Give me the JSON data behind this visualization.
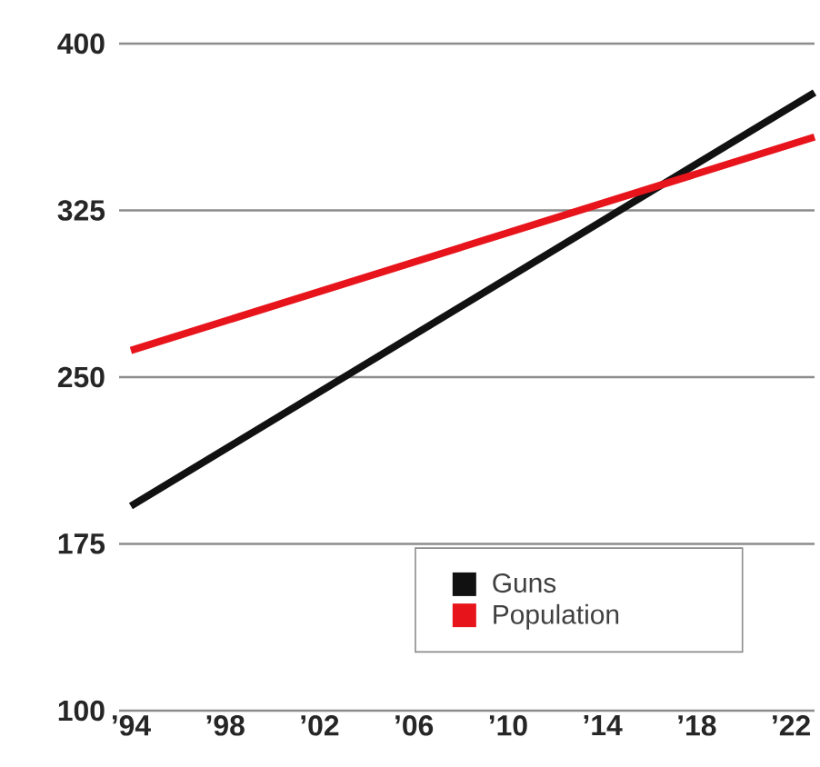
{
  "chart_data": {
    "type": "line",
    "x": [
      1994,
      2023
    ],
    "series": [
      {
        "name": "Guns",
        "color": "#111111",
        "values": [
          192,
          378
        ]
      },
      {
        "name": "Population",
        "color": "#e8141c",
        "values": [
          262,
          358
        ]
      }
    ],
    "xlim": [
      1993.5,
      2023
    ],
    "xticks": [
      {
        "value": 1994,
        "label": "’94"
      },
      {
        "value": 1998,
        "label": "’98"
      },
      {
        "value": 2002,
        "label": "’02"
      },
      {
        "value": 2006,
        "label": "’06"
      },
      {
        "value": 2010,
        "label": "’10"
      },
      {
        "value": 2014,
        "label": "’14"
      },
      {
        "value": 2018,
        "label": "’18"
      },
      {
        "value": 2022,
        "label": "’22"
      }
    ],
    "ylim": [
      100,
      400
    ],
    "yticks": [
      100,
      175,
      250,
      325,
      400
    ],
    "grid": "y",
    "legend": "bottom right",
    "marker": "none",
    "line_style": "solid"
  }
}
